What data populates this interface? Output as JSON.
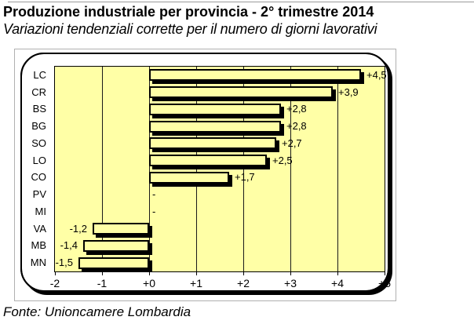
{
  "header": {
    "title": "Produzione industriale per provincia - 2° trimestre 2014",
    "subtitle": "Variazioni tendenziali corrette per il numero di giorni lavorativi"
  },
  "source": "Fonte: Unioncamere Lombardia",
  "chart_data": {
    "type": "bar",
    "orientation": "horizontal",
    "title": "Produzione industriale per provincia - 2° trimestre 2014",
    "subtitle": "Variazioni tendenziali corrette per il numero di giorni lavorativi",
    "categories": [
      "LC",
      "CR",
      "BS",
      "BG",
      "SO",
      "LO",
      "CO",
      "PV",
      "MI",
      "VA",
      "MB",
      "MN"
    ],
    "values": [
      4.5,
      3.9,
      2.8,
      2.8,
      2.7,
      2.5,
      1.7,
      null,
      null,
      -1.2,
      -1.4,
      -1.5
    ],
    "value_labels": [
      "+4,5",
      "+3,9",
      "+2,8",
      "+2,8",
      "+2,7",
      "+2,5",
      "+1,7",
      "-",
      "-",
      "-1,2",
      "-1,4",
      "-1,5"
    ],
    "x_tick_labels": [
      "-2",
      "-1",
      "+0",
      "+1",
      "+2",
      "+3",
      "+4",
      "+5"
    ],
    "x_tick_values": [
      -2,
      -1,
      0,
      1,
      2,
      3,
      4,
      5
    ],
    "xlim": [
      -2,
      5
    ],
    "grid": true,
    "legend": "none",
    "colors": {
      "plot_background": "#ffffa6",
      "bar_fill": "#ffffa6",
      "bar_border": "#000000",
      "shadow": "#000000",
      "grid_line": "#1a1a1a",
      "object_border": "#b0b0b0"
    }
  }
}
